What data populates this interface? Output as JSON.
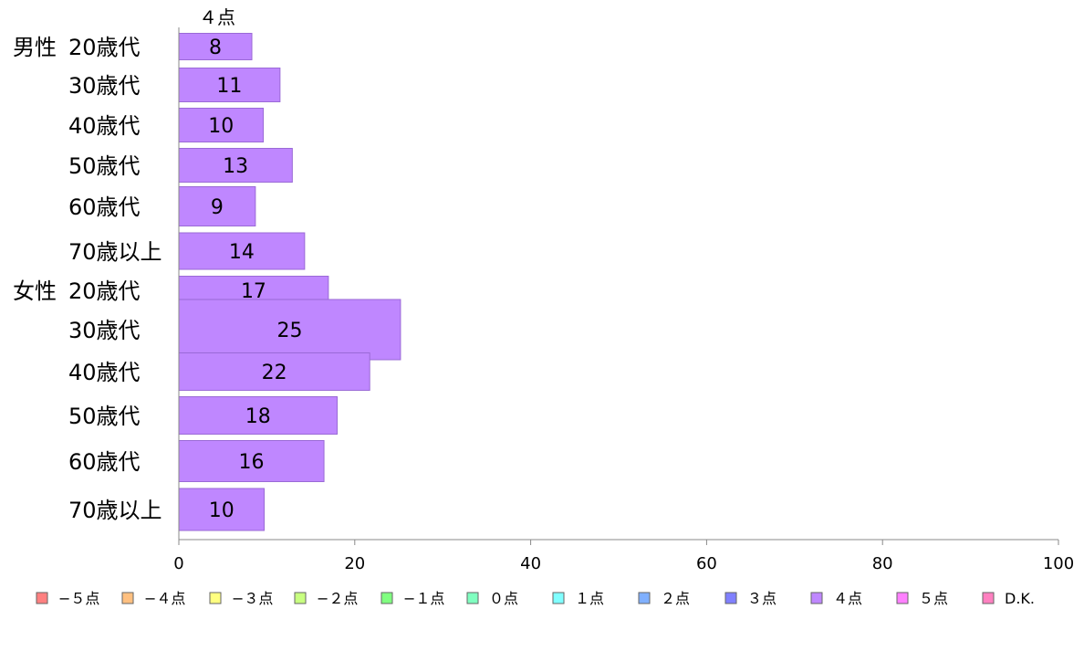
{
  "chart_data": {
    "type": "bar",
    "orientation": "horizontal",
    "stacked": true,
    "groups": [
      {
        "label": "男性",
        "rows": [
          "20歳代",
          "30歳代",
          "40歳代",
          "50歳代",
          "60歳代",
          "70歳以上"
        ]
      },
      {
        "label": "女性",
        "rows": [
          "20歳代",
          "30歳代",
          "40歳代",
          "50歳代",
          "60歳代",
          "70歳以上"
        ]
      }
    ],
    "categories": [
      "男性 20歳代",
      "男性 30歳代",
      "男性 40歳代",
      "男性 50歳代",
      "男性 60歳代",
      "男性 70歳以上",
      "女性 20歳代",
      "女性 30歳代",
      "女性 40歳代",
      "女性 50歳代",
      "女性 60歳代",
      "女性 70歳以上"
    ],
    "shown_series": "４点",
    "series": [
      {
        "name": "４点",
        "color": "#bf87ff",
        "values": [
          8.3,
          11.5,
          9.6,
          12.9,
          8.7,
          14.3,
          17.0,
          25.2,
          21.7,
          18.0,
          16.5,
          9.7
        ],
        "labels": [
          "8",
          "11",
          "10",
          "13",
          "9",
          "14",
          "17",
          "25",
          "22",
          "18",
          "16",
          "10"
        ]
      }
    ],
    "xlim": [
      0,
      100
    ],
    "xticks": [
      "0",
      "20",
      "40",
      "60",
      "80",
      "100"
    ],
    "legend": {
      "position": "bottom",
      "items": [
        {
          "label": "−５点",
          "color": "#ff8080"
        },
        {
          "label": "−４点",
          "color": "#ffc080"
        },
        {
          "label": "−３点",
          "color": "#ffff80"
        },
        {
          "label": "−２点",
          "color": "#c8ff80"
        },
        {
          "label": "−１点",
          "color": "#80ff80"
        },
        {
          "label": "０点",
          "color": "#80ffc0"
        },
        {
          "label": "１点",
          "color": "#80ffff"
        },
        {
          "label": "２点",
          "color": "#80b0ff"
        },
        {
          "label": "３点",
          "color": "#8080ff"
        },
        {
          "label": "４点",
          "color": "#bf87ff"
        },
        {
          "label": "５点",
          "color": "#ff80ff"
        },
        {
          "label": "D.K.",
          "color": "#ff80c0"
        }
      ]
    }
  }
}
